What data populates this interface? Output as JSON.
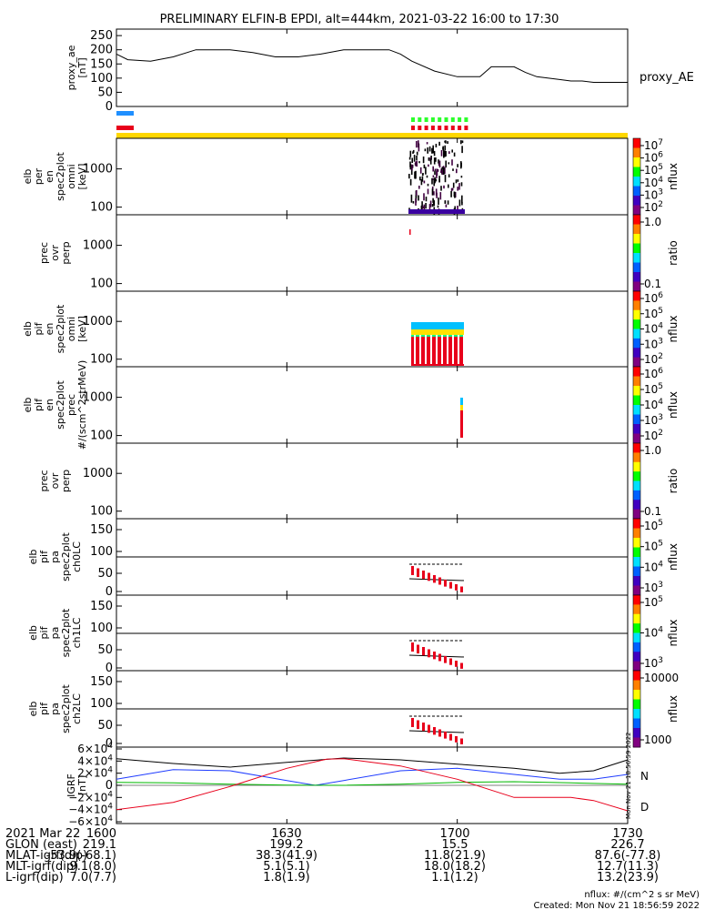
{
  "title": "PRELIMINARY ELFIN-B EPDI, alt=444km, 2021-03-22 16:00 to 17:30",
  "colors": {
    "blue_bar": "#1f8fff",
    "red_bar": "#e8001b",
    "yellow_bar": "#ffd700",
    "green_bar": "#2dff2d",
    "trace_black": "#000000",
    "trace_blue": "#1f3cff",
    "trace_green": "#00b800",
    "trace_red": "#e8001b"
  },
  "panels": [
    {
      "key": "proxy_ae",
      "ylabel": [
        "proxy_ae",
        "[nT]"
      ],
      "yticks": [
        "250",
        "200",
        "150",
        "100",
        "50",
        "0"
      ],
      "right_label": "proxy_AE"
    },
    {
      "key": "per_omni",
      "ylabel": [
        "elb",
        "per",
        "en",
        "spec2plot",
        "omni",
        "[keV]"
      ],
      "yticks": [
        "1000",
        "100"
      ],
      "colorbar": {
        "ticks": [
          "10^7",
          "10^6",
          "10^5",
          "10^4",
          "10^3",
          "10^2"
        ],
        "label": "nflux"
      }
    },
    {
      "key": "prec_ovr_perp_e",
      "ylabel": [
        "prec",
        "ovr",
        "perp"
      ],
      "yticks": [
        "1000",
        "100"
      ],
      "colorbar": {
        "ticks": [
          "1.0",
          "0.1"
        ],
        "label": "ratio"
      }
    },
    {
      "key": "pif_omni",
      "ylabel": [
        "elb",
        "pif",
        "en",
        "spec2plot",
        "omni",
        "[keV]"
      ],
      "yticks": [
        "1000",
        "100"
      ],
      "colorbar": {
        "ticks": [
          "10^6",
          "10^5",
          "10^4",
          "10^3",
          "10^2"
        ],
        "label": "nflux"
      }
    },
    {
      "key": "pif_prec",
      "ylabel": [
        "elb",
        "pif",
        "en",
        "spec2plot",
        "prec",
        "#/(scm^2strMeV)"
      ],
      "yticks": [
        "1000",
        "100"
      ],
      "colorbar": {
        "ticks": [
          "10^6",
          "10^5",
          "10^4",
          "10^3",
          "10^2"
        ],
        "label": "nflux"
      }
    },
    {
      "key": "prec_ovr_perp_p",
      "ylabel": [
        "prec",
        "ovr",
        "perp"
      ],
      "yticks": [
        "1000",
        "100"
      ],
      "colorbar": {
        "ticks": [
          "1.0",
          "0.1"
        ],
        "label": "ratio"
      }
    },
    {
      "key": "ch0LC",
      "ylabel": [
        "elb",
        "pif",
        "pa",
        "spec2plot",
        "ch0LC"
      ],
      "yticks": [
        "150",
        "100",
        "50",
        "0"
      ],
      "colorbar": {
        "ticks": [
          "10^5",
          "10^5",
          "10^4",
          "10^3"
        ],
        "label": "nflux"
      }
    },
    {
      "key": "ch1LC",
      "ylabel": [
        "elb",
        "pif",
        "pa",
        "spec2plot",
        "ch1LC"
      ],
      "yticks": [
        "150",
        "100",
        "50",
        "0"
      ],
      "colorbar": {
        "ticks": [
          "10^5",
          "10^4",
          "10^3"
        ],
        "label": "nflux"
      }
    },
    {
      "key": "ch2LC",
      "ylabel": [
        "elb",
        "pif",
        "pa",
        "spec2plot",
        "ch2LC"
      ],
      "yticks": [
        "150",
        "100",
        "50",
        "0"
      ],
      "colorbar": {
        "ticks": [
          "10000",
          "1000"
        ],
        "label": "nflux"
      }
    },
    {
      "key": "igrf",
      "ylabel": [
        "IGRF",
        "[nT]"
      ],
      "yticks": [
        "6×10^4",
        "4×10^4",
        "2×10^4",
        "0",
        "−2×10^4",
        "−4×10^4",
        "−6×10^4"
      ],
      "right_labels": [
        "N",
        "D"
      ]
    }
  ],
  "chart_data": {
    "type": "line",
    "title": "PRELIMINARY ELFIN-B EPDI, alt=444km, 2021-03-22 16:00 to 17:30",
    "x_range_minutes": [
      0,
      90
    ],
    "proxy_ae": {
      "ylim": [
        0,
        260
      ],
      "x": [
        0,
        2,
        6,
        10,
        14,
        16,
        20,
        24,
        28,
        32,
        36,
        40,
        44,
        48,
        50,
        52,
        56,
        60,
        62,
        64,
        66,
        68,
        70,
        72,
        74,
        78,
        80,
        82,
        84,
        86,
        88,
        90
      ],
      "y": [
        185,
        165,
        160,
        175,
        200,
        200,
        200,
        190,
        175,
        175,
        185,
        200,
        200,
        200,
        185,
        160,
        125,
        105,
        105,
        105,
        140,
        140,
        140,
        120,
        105,
        95,
        90,
        90,
        85,
        85,
        85,
        85
      ]
    },
    "igrf": {
      "ylim": [
        -60000,
        60000
      ],
      "series": [
        {
          "color": "black",
          "x": [
            0,
            10,
            20,
            30,
            40,
            50,
            60,
            70,
            78,
            84,
            90
          ],
          "y": [
            44000,
            36000,
            30000,
            38000,
            45000,
            42000,
            35000,
            28000,
            20000,
            24000,
            42000
          ]
        },
        {
          "color": "blue",
          "x": [
            0,
            10,
            20,
            30,
            35,
            40,
            50,
            60,
            70,
            78,
            84,
            90
          ],
          "y": [
            10000,
            26000,
            24000,
            8000,
            0,
            8000,
            24000,
            28000,
            18000,
            10000,
            10000,
            18000
          ]
        },
        {
          "color": "green",
          "x": [
            0,
            10,
            20,
            30,
            40,
            50,
            60,
            70,
            80,
            90
          ],
          "y": [
            5000,
            4000,
            2000,
            500,
            0,
            2000,
            5000,
            6000,
            4000,
            2000
          ]
        },
        {
          "color": "red",
          "x": [
            0,
            10,
            20,
            30,
            37,
            40,
            50,
            60,
            65,
            70,
            80,
            84,
            90
          ],
          "y": [
            -40000,
            -28000,
            -2000,
            28000,
            43000,
            44000,
            32000,
            10000,
            -5000,
            -20000,
            -20000,
            -25000,
            -42000
          ]
        }
      ]
    },
    "x_ticks": [
      "1600",
      "1630",
      "1700",
      "1730"
    ]
  },
  "ephemeris": {
    "rows": [
      {
        "label": "2021 Mar 22",
        "values": [
          "1600",
          "1630",
          "1700",
          "1730"
        ]
      },
      {
        "label": "GLON (east)",
        "values": [
          "219.1",
          "199.2",
          "15.5",
          "226.7"
        ]
      },
      {
        "label": "MLAT-igrf(dip)",
        "values": [
          "-53.9(-68.1)",
          "38.3(41.9)",
          "11.8(21.9)",
          "87.6(-77.8)"
        ]
      },
      {
        "label": "MLT-igrf(dip)",
        "values": [
          "9.1(8.0)",
          "5.1(5.1)",
          "18.0(18.2)",
          "12.7(11.3)"
        ]
      },
      {
        "label": "L-igrf(dip)",
        "values": [
          "7.0(7.7)",
          "1.8(1.9)",
          "1.1(1.2)",
          "13.2(23.9)"
        ]
      }
    ]
  },
  "footer": {
    "units": "nflux: #/(cm^2 s sr MeV)",
    "created": "Created: Mon Nov 21 18:56:59 2022",
    "side_stamp": "Mon Nov 21 18:56:59 2022"
  }
}
